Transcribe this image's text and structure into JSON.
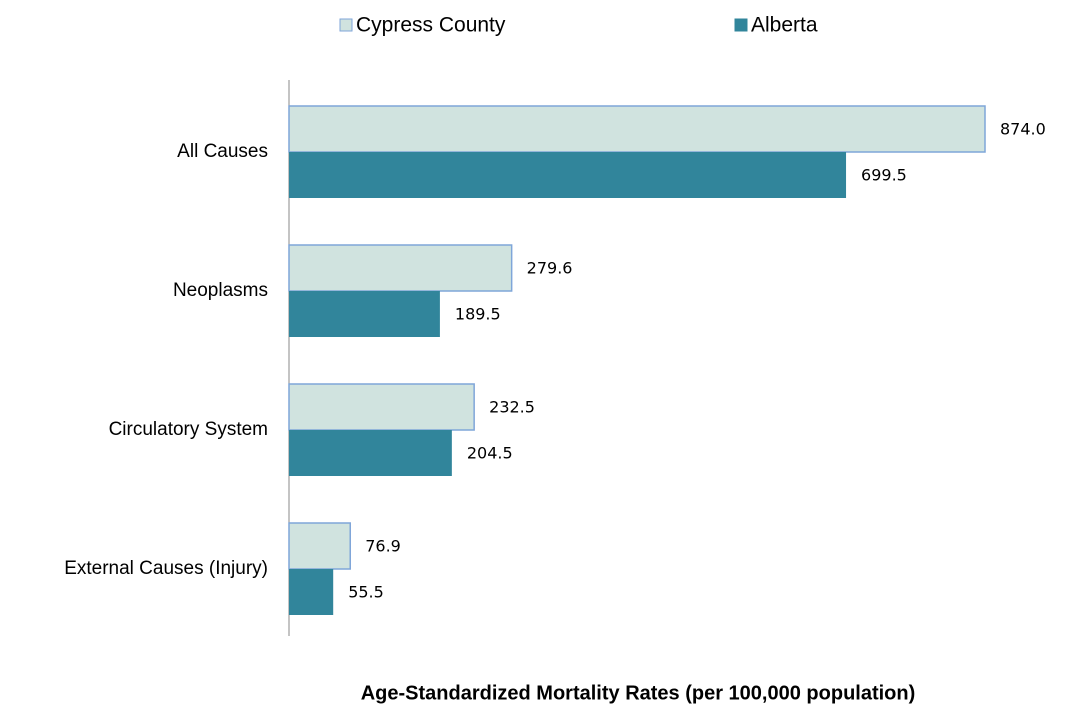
{
  "chart_data": {
    "type": "bar",
    "orientation": "horizontal",
    "title": "Age-Standardized Mortality Rates (per 100,000 population)",
    "categories": [
      "All Causes",
      "Neoplasms",
      "Circulatory System",
      "External Causes (Injury)"
    ],
    "series": [
      {
        "name": "Cypress County",
        "color": "#d0e3df",
        "edge_color": "#7fa6d9",
        "values": [
          874.0,
          279.6,
          232.5,
          76.9
        ],
        "value_labels": [
          "874.0",
          "279.6",
          "232.5",
          "76.9"
        ]
      },
      {
        "name": "Alberta",
        "color": "#31859b",
        "values": [
          699.5,
          189.5,
          204.5,
          55.5
        ],
        "value_labels": [
          "699.5",
          "189.5",
          "204.5",
          "55.5"
        ]
      }
    ],
    "legend": "top"
  }
}
